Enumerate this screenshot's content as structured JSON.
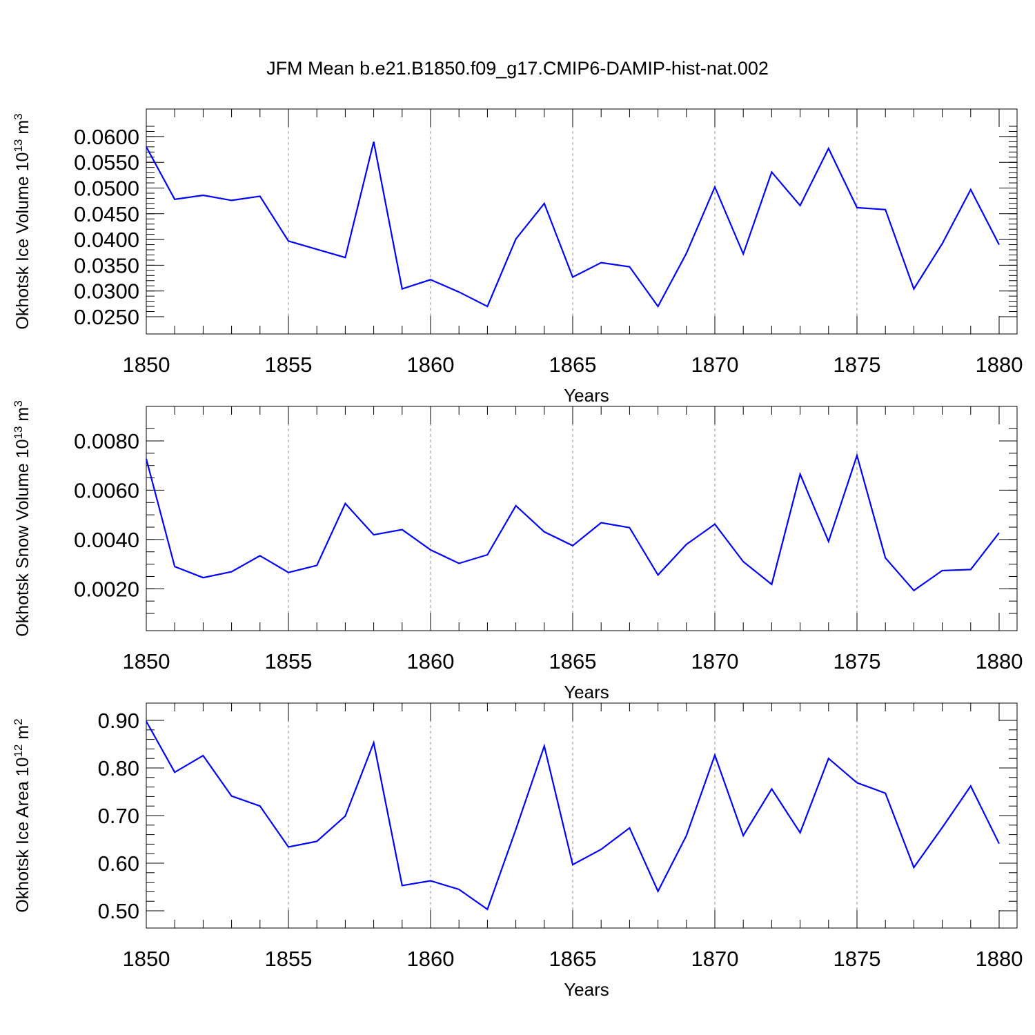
{
  "figure_title": "JFM Mean b.e21.B1850.f09_g17.CMIP6-DAMIP-hist-nat.002",
  "colors": {
    "line": "#0000ff",
    "grid": "#8c8c8c",
    "axes": "#000000"
  },
  "chart_data": [
    {
      "type": "line",
      "ylabel": {
        "main": "Okhotsk Ice Volume 10",
        "sup": "13",
        "after": " m",
        "sup2": "3"
      },
      "xlabel": "Years",
      "xlim": [
        1850,
        1880
      ],
      "ylim": [
        0.025,
        0.062
      ],
      "grid": "vertical dashed at major x ticks",
      "x_major_ticks": [
        1850,
        1855,
        1860,
        1865,
        1870,
        1875,
        1880
      ],
      "x_tick_labels": [
        "1850",
        "1855",
        "1860",
        "1865",
        "1870",
        "1875",
        "1880"
      ],
      "y_major_ticks": [
        0.025,
        0.03,
        0.035,
        0.04,
        0.045,
        0.05,
        0.055,
        0.06
      ],
      "y_tick_labels": [
        "0.0250",
        "0.0300",
        "0.0350",
        "0.0400",
        "0.0450",
        "0.0500",
        "0.0550",
        "0.0600"
      ],
      "y_minor_step": 0.001,
      "x": [
        1850,
        1851,
        1852,
        1853,
        1854,
        1855,
        1856,
        1857,
        1858,
        1859,
        1860,
        1861,
        1862,
        1863,
        1864,
        1865,
        1866,
        1867,
        1868,
        1869,
        1870,
        1871,
        1872,
        1873,
        1874,
        1875,
        1876,
        1877,
        1878,
        1879,
        1880
      ],
      "y": [
        0.058,
        0.0478,
        0.0486,
        0.0476,
        0.0484,
        0.0397,
        0.0381,
        0.0365,
        0.059,
        0.0304,
        0.0322,
        0.0298,
        0.027,
        0.0401,
        0.047,
        0.0327,
        0.0355,
        0.0347,
        0.027,
        0.0373,
        0.0502,
        0.0372,
        0.0531,
        0.0466,
        0.0577,
        0.0462,
        0.0458,
        0.0304,
        0.0392,
        0.0497,
        0.039
      ]
    },
    {
      "type": "line",
      "ylabel": {
        "main": "Okhotsk Snow Volume 10",
        "sup": "13",
        "after": " m",
        "sup2": "3"
      },
      "xlabel": "Years",
      "xlim": [
        1850,
        1880
      ],
      "ylim": [
        0.001,
        0.0087
      ],
      "grid": "vertical dashed at major x ticks",
      "x_major_ticks": [
        1850,
        1855,
        1860,
        1865,
        1870,
        1875,
        1880
      ],
      "x_tick_labels": [
        "1850",
        "1855",
        "1860",
        "1865",
        "1870",
        "1875",
        "1880"
      ],
      "y_major_ticks": [
        0.002,
        0.004,
        0.006,
        0.008
      ],
      "y_tick_labels": [
        "0.0020",
        "0.0040",
        "0.0060",
        "0.0080"
      ],
      "y_minor_step": 0.0005,
      "x": [
        1850,
        1851,
        1852,
        1853,
        1854,
        1855,
        1856,
        1857,
        1858,
        1859,
        1860,
        1861,
        1862,
        1863,
        1864,
        1865,
        1866,
        1867,
        1868,
        1869,
        1870,
        1871,
        1872,
        1873,
        1874,
        1875,
        1876,
        1877,
        1878,
        1879,
        1880
      ],
      "y": [
        0.00727,
        0.0029,
        0.00245,
        0.00269,
        0.00334,
        0.00266,
        0.00295,
        0.00546,
        0.00419,
        0.0044,
        0.00358,
        0.00303,
        0.00338,
        0.00537,
        0.00431,
        0.00375,
        0.00468,
        0.00448,
        0.00256,
        0.0038,
        0.00462,
        0.0031,
        0.00218,
        0.00665,
        0.00392,
        0.00741,
        0.00325,
        0.00193,
        0.00274,
        0.00278,
        0.00427
      ]
    },
    {
      "type": "line",
      "ylabel": {
        "main": "Okhotsk Ice Area 10",
        "sup": "12",
        "after": " m",
        "sup2": "2"
      },
      "xlabel": "Years",
      "xlim": [
        1850,
        1880
      ],
      "ylim": [
        0.5,
        0.9
      ],
      "grid": "vertical dashed at major x ticks",
      "x_major_ticks": [
        1850,
        1855,
        1860,
        1865,
        1870,
        1875,
        1880
      ],
      "x_tick_labels": [
        "1850",
        "1855",
        "1860",
        "1865",
        "1870",
        "1875",
        "1880"
      ],
      "y_major_ticks": [
        0.5,
        0.6,
        0.7,
        0.8,
        0.9
      ],
      "y_tick_labels": [
        "0.50",
        "0.60",
        "0.70",
        "0.80",
        "0.90"
      ],
      "y_minor_step": 0.02,
      "x": [
        1850,
        1851,
        1852,
        1853,
        1854,
        1855,
        1856,
        1857,
        1858,
        1859,
        1860,
        1861,
        1862,
        1863,
        1864,
        1865,
        1866,
        1867,
        1868,
        1869,
        1870,
        1871,
        1872,
        1873,
        1874,
        1875,
        1876,
        1877,
        1878,
        1879,
        1880
      ],
      "y": [
        0.898,
        0.791,
        0.826,
        0.741,
        0.72,
        0.634,
        0.646,
        0.699,
        0.853,
        0.553,
        0.563,
        0.545,
        0.503,
        0.671,
        0.846,
        0.597,
        0.629,
        0.674,
        0.541,
        0.658,
        0.827,
        0.658,
        0.756,
        0.664,
        0.82,
        0.769,
        0.747,
        0.591,
        0.675,
        0.762,
        0.641
      ]
    }
  ]
}
